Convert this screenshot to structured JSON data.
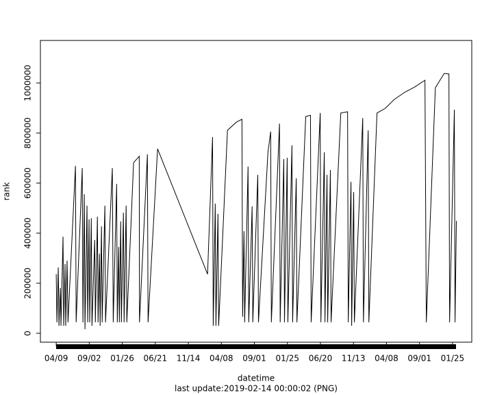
{
  "chart_data": {
    "type": "line",
    "x_label": "datetime",
    "y_label": "rank",
    "caption": "last update:2019-02-14 00:00:02 (PNG)",
    "color": "#000000",
    "x": [
      0,
      3,
      9,
      12,
      18,
      21,
      30,
      33,
      39,
      42,
      48,
      52,
      85,
      88,
      115,
      118,
      124,
      127,
      136,
      139,
      145,
      148,
      155,
      158,
      170,
      173,
      182,
      185,
      191,
      194,
      200,
      203,
      215,
      218,
      248,
      252,
      267,
      270,
      276,
      279,
      285,
      288,
      297,
      300,
      309,
      312,
      342,
      367,
      368,
      403,
      406,
      448,
      669,
      691,
      694,
      703,
      706,
      715,
      718,
      757,
      797,
      821,
      824,
      830,
      833,
      848,
      851,
      866,
      869,
      891,
      894,
      936,
      948,
      951,
      987,
      990,
      1006,
      1009,
      1021,
      1024,
      1042,
      1045,
      1061,
      1064,
      1103,
      1124,
      1127,
      1167,
      1170,
      1185,
      1188,
      1197,
      1200,
      1212,
      1215,
      1258,
      1288,
      1291,
      1303,
      1306,
      1315,
      1318,
      1355,
      1358,
      1379,
      1382,
      1418,
      1455,
      1494,
      1539,
      1585,
      1630,
      1636,
      1676,
      1715,
      1736,
      1739,
      1760,
      1763,
      1769
    ],
    "values": [
      236000,
      44000,
      263000,
      30000,
      181000,
      30000,
      386000,
      30000,
      277000,
      30000,
      290000,
      44000,
      669000,
      44000,
      660000,
      44000,
      556000,
      16000,
      510000,
      44000,
      455000,
      44000,
      460000,
      30000,
      373000,
      44000,
      466000,
      44000,
      318000,
      30000,
      427000,
      44000,
      510000,
      44000,
      660000,
      44000,
      597000,
      44000,
      345000,
      44000,
      447000,
      44000,
      482000,
      44000,
      510000,
      44000,
      682000,
      707000,
      44000,
      715000,
      44000,
      737000,
      236000,
      784000,
      30000,
      518000,
      30000,
      477000,
      30000,
      811000,
      844000,
      855000,
      66000,
      408000,
      44000,
      666000,
      44000,
      507000,
      44000,
      633000,
      44000,
      723000,
      806000,
      44000,
      838000,
      44000,
      696000,
      44000,
      701000,
      44000,
      751000,
      44000,
      619000,
      44000,
      866000,
      871000,
      44000,
      880000,
      44000,
      723000,
      44000,
      633000,
      44000,
      652000,
      44000,
      880000,
      885000,
      44000,
      605000,
      30000,
      564000,
      44000,
      860000,
      44000,
      811000,
      44000,
      880000,
      899000,
      934000,
      962000,
      984000,
      1011000,
      44000,
      981000,
      1038000,
      1036000,
      44000,
      893000,
      44000,
      449000
    ],
    "xlim": [
      -70,
      1837
    ],
    "xticks": [
      {
        "value": 0,
        "label": "04/09"
      },
      {
        "value": 146,
        "label": "09/02"
      },
      {
        "value": 292,
        "label": "01/26"
      },
      {
        "value": 438,
        "label": "06/21"
      },
      {
        "value": 584,
        "label": "11/14"
      },
      {
        "value": 730,
        "label": "04/08"
      },
      {
        "value": 876,
        "label": "09/01"
      },
      {
        "value": 1022,
        "label": "01/25"
      },
      {
        "value": 1168,
        "label": "06/20"
      },
      {
        "value": 1314,
        "label": "11/13"
      },
      {
        "value": 1460,
        "label": "04/08"
      },
      {
        "value": 1606,
        "label": "09/01"
      },
      {
        "value": 1752,
        "label": "01/25"
      }
    ],
    "ylim": [
      -35600,
      1169900
    ],
    "yticks": [
      0,
      200000,
      400000,
      600000,
      800000,
      1000000
    ]
  }
}
